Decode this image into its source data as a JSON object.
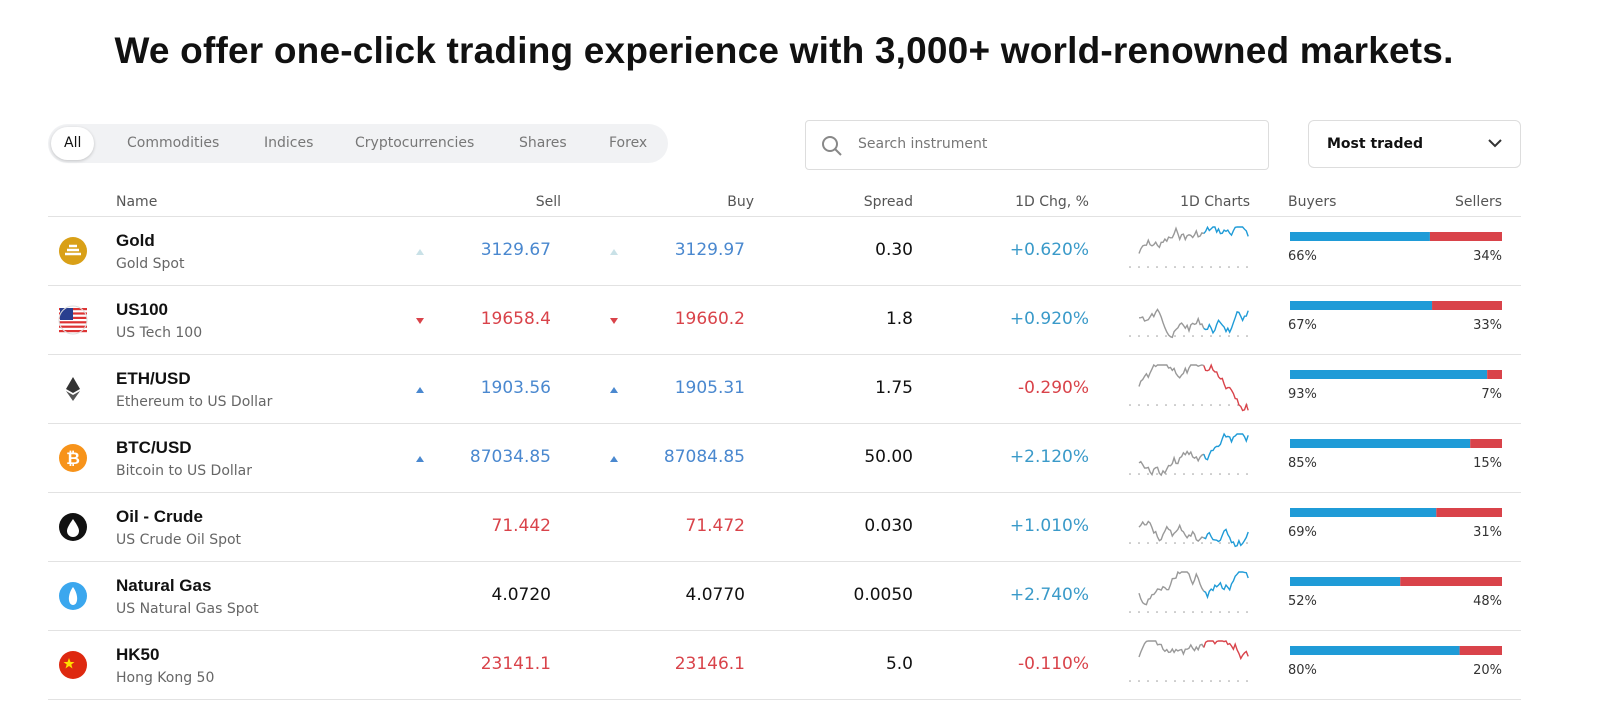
{
  "header": {
    "title": "We offer one-click trading experience with 3,000+ world-renowned markets."
  },
  "filters": {
    "tabs": [
      "All",
      "Commodities",
      "Indices",
      "Cryptocurrencies",
      "Shares",
      "Forex"
    ],
    "active": 0,
    "search_placeholder": "Search instrument",
    "sort": "Most traded"
  },
  "table": {
    "columns": [
      "Name",
      "Sell",
      "Buy",
      "Spread",
      "1D Chg, %",
      "1D Charts",
      "Buyers",
      "Sellers"
    ],
    "rows": [
      {
        "icon": "gold",
        "name": "Gold",
        "description": "Gold Spot",
        "trend": "up",
        "faint": true,
        "sell": "3129.67",
        "buy": "3129.97",
        "spread": "0.30",
        "change": "+0.620%",
        "buyers": {
          "value": 66,
          "label": "66%"
        },
        "sellers": {
          "value": 34,
          "label": "34%"
        }
      },
      {
        "icon": "us",
        "name": "US100",
        "description": "US Tech 100",
        "trend": "down",
        "faint": false,
        "sell": "19658.4",
        "buy": "19660.2",
        "spread": "1.8",
        "change": "+0.920%",
        "buyers": {
          "value": 67,
          "label": "67%"
        },
        "sellers": {
          "value": 33,
          "label": "33%"
        }
      },
      {
        "icon": "eth",
        "name": "ETH/USD",
        "description": "Ethereum to US Dollar",
        "trend": "up",
        "faint": false,
        "sell": "1903.56",
        "buy": "1905.31",
        "spread": "1.75",
        "change": "-0.290%",
        "buyers": {
          "value": 93,
          "label": "93%"
        },
        "sellers": {
          "value": 7,
          "label": "7%"
        }
      },
      {
        "icon": "btc",
        "name": "BTC/USD",
        "description": "Bitcoin to US Dollar",
        "trend": "up",
        "faint": false,
        "sell": "87034.85",
        "buy": "87084.85",
        "spread": "50.00",
        "change": "+2.120%",
        "buyers": {
          "value": 85,
          "label": "85%"
        },
        "sellers": {
          "value": 15,
          "label": "15%"
        }
      },
      {
        "icon": "oil",
        "name": "Oil - Crude",
        "description": "US Crude Oil Spot",
        "trend": "down-none",
        "faint": false,
        "sell": "71.442",
        "buy": "71.472",
        "spread": "0.030",
        "change": "+1.010%",
        "buyers": {
          "value": 69,
          "label": "69%"
        },
        "sellers": {
          "value": 31,
          "label": "31%"
        }
      },
      {
        "icon": "gas",
        "name": "Natural Gas",
        "description": "US Natural Gas Spot",
        "trend": "none",
        "faint": false,
        "sell": "4.0720",
        "buy": "4.0770",
        "spread": "0.0050",
        "change": "+2.740%",
        "buyers": {
          "value": 52,
          "label": "52%"
        },
        "sellers": {
          "value": 48,
          "label": "48%"
        }
      },
      {
        "icon": "cn",
        "name": "HK50",
        "description": "Hong Kong 50",
        "trend": "down-none",
        "faint": false,
        "sell": "23141.1",
        "buy": "23146.1",
        "spread": "5.0",
        "change": "-0.110%",
        "buyers": {
          "value": 80,
          "label": "80%"
        },
        "sellers": {
          "value": 20,
          "label": "20%"
        }
      }
    ]
  }
}
